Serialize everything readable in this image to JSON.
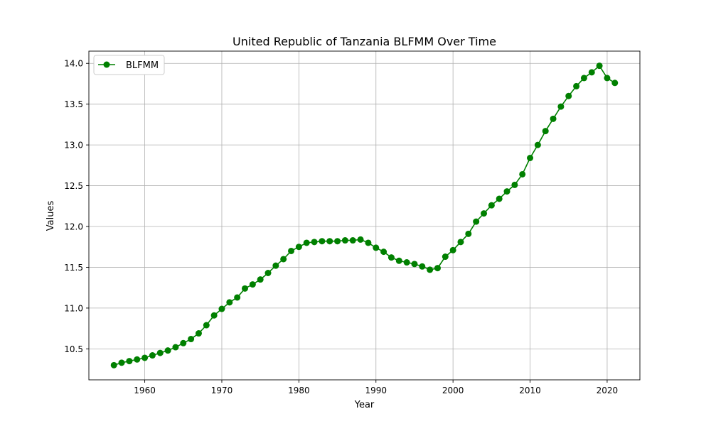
{
  "chart_data": {
    "type": "line",
    "title": "United Republic of Tanzania BLFMM Over Time",
    "xlabel": "Year",
    "ylabel": "Values",
    "xlim": [
      1952.75,
      2024.25
    ],
    "ylim": [
      10.12,
      14.15
    ],
    "xticks": [
      1960,
      1970,
      1980,
      1990,
      2000,
      2010,
      2020
    ],
    "yticks": [
      10.5,
      11.0,
      11.5,
      12.0,
      12.5,
      13.0,
      13.5,
      14.0
    ],
    "xtick_labels": [
      "1960",
      "1970",
      "1980",
      "1990",
      "2000",
      "2010",
      "2020"
    ],
    "ytick_labels": [
      "10.5",
      "11.0",
      "11.5",
      "12.0",
      "12.5",
      "13.0",
      "13.5",
      "14.0"
    ],
    "grid": true,
    "legend_position": "upper-left",
    "series": [
      {
        "name": "BLFMM",
        "color": "#008000",
        "marker": "circle",
        "x": [
          1956,
          1957,
          1958,
          1959,
          1960,
          1961,
          1962,
          1963,
          1964,
          1965,
          1966,
          1967,
          1968,
          1969,
          1970,
          1971,
          1972,
          1973,
          1974,
          1975,
          1976,
          1977,
          1978,
          1979,
          1980,
          1981,
          1982,
          1983,
          1984,
          1985,
          1986,
          1987,
          1988,
          1989,
          1990,
          1991,
          1992,
          1993,
          1994,
          1995,
          1996,
          1997,
          1998,
          1999,
          2000,
          2001,
          2002,
          2003,
          2004,
          2005,
          2006,
          2007,
          2008,
          2009,
          2010,
          2011,
          2012,
          2013,
          2014,
          2015,
          2016,
          2017,
          2018,
          2019,
          2020,
          2021
        ],
        "y": [
          10.3,
          10.33,
          10.35,
          10.37,
          10.39,
          10.42,
          10.45,
          10.48,
          10.52,
          10.57,
          10.62,
          10.69,
          10.79,
          10.91,
          10.99,
          11.07,
          11.13,
          11.24,
          11.29,
          11.35,
          11.43,
          11.52,
          11.6,
          11.7,
          11.75,
          11.8,
          11.81,
          11.82,
          11.82,
          11.82,
          11.83,
          11.83,
          11.84,
          11.8,
          11.74,
          11.69,
          11.62,
          11.58,
          11.56,
          11.54,
          11.51,
          11.47,
          11.49,
          11.63,
          11.71,
          11.81,
          11.91,
          12.06,
          12.16,
          12.26,
          12.34,
          12.43,
          12.51,
          12.64,
          12.84,
          13.0,
          13.17,
          13.32,
          13.47,
          13.6,
          13.72,
          13.82,
          13.89,
          13.97,
          13.82,
          13.76
        ]
      }
    ]
  }
}
